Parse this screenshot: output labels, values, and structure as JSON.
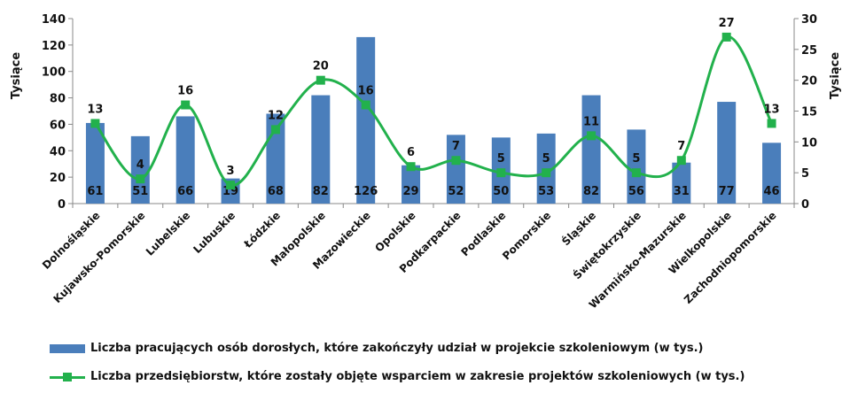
{
  "chart_data": {
    "type": "bar",
    "categories": [
      "Dolnośląskie",
      "Kujawsko-Pomorskie",
      "Lubelskie",
      "Lubuskie",
      "Łódzkie",
      "Małopolskie",
      "Mazowieckie",
      "Opolskie",
      "Podkarpackie",
      "Podlaskie",
      "Pomorskie",
      "Śląskie",
      "Świętokrzyskie",
      "Warmińsko-Mazurskie",
      "Wielkopolskie",
      "Zachodniopomorskie"
    ],
    "series": [
      {
        "name": "Liczba pracujących osób dorosłych, które zakończyły udział w projekcie szkoleniowym (w tys.)",
        "type": "bar",
        "axis": "left",
        "color": "#4a7ebb",
        "values": [
          61,
          51,
          66,
          19,
          68,
          82,
          126,
          29,
          52,
          50,
          53,
          82,
          56,
          31,
          77,
          46
        ]
      },
      {
        "name": "Liczba przedsiębiorstw, które zostały objęte wsparciem w zakresie projektów szkoleniowych (w tys.)",
        "type": "line",
        "axis": "right",
        "color": "#22b14c",
        "values": [
          13,
          4,
          16,
          3,
          12,
          20,
          16,
          6,
          7,
          5,
          5,
          11,
          5,
          7,
          27,
          13
        ]
      }
    ],
    "ylabel_left": "Tysiące",
    "ylabel_right": "Tysiące",
    "ylim_left": [
      0,
      140
    ],
    "yticks_left": [
      0,
      20,
      40,
      60,
      80,
      100,
      120,
      140
    ],
    "ylim_right": [
      0,
      30
    ],
    "yticks_right": [
      0,
      5,
      10,
      15,
      20,
      25,
      30
    ],
    "grid": false,
    "legend_position": "bottom"
  }
}
